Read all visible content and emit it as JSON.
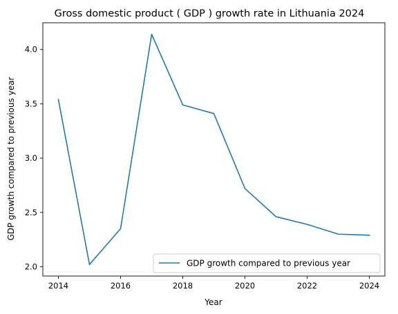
{
  "chart_data": {
    "type": "line",
    "title": "Gross domestic product ( GDP ) growth rate in Lithuania 2024",
    "xlabel": "Year",
    "ylabel": "GDP growth compared to previous year",
    "x": [
      2014,
      2015,
      2016,
      2017,
      2018,
      2019,
      2020,
      2021,
      2022,
      2023,
      2024
    ],
    "series": [
      {
        "name": "GDP growth compared to previous year",
        "color": "#1f77b4",
        "values": [
          3.54,
          2.02,
          2.35,
          4.14,
          3.49,
          3.41,
          2.72,
          2.46,
          2.39,
          2.3,
          2.29
        ]
      }
    ],
    "xlim": [
      2013.5,
      2024.5
    ],
    "ylim": [
      1.914,
      4.246
    ],
    "xticks": [
      2014,
      2016,
      2018,
      2020,
      2022,
      2024
    ],
    "yticks": [
      2.0,
      2.5,
      3.0,
      3.5,
      4.0
    ],
    "grid": false,
    "legend_position": "lower-right"
  }
}
